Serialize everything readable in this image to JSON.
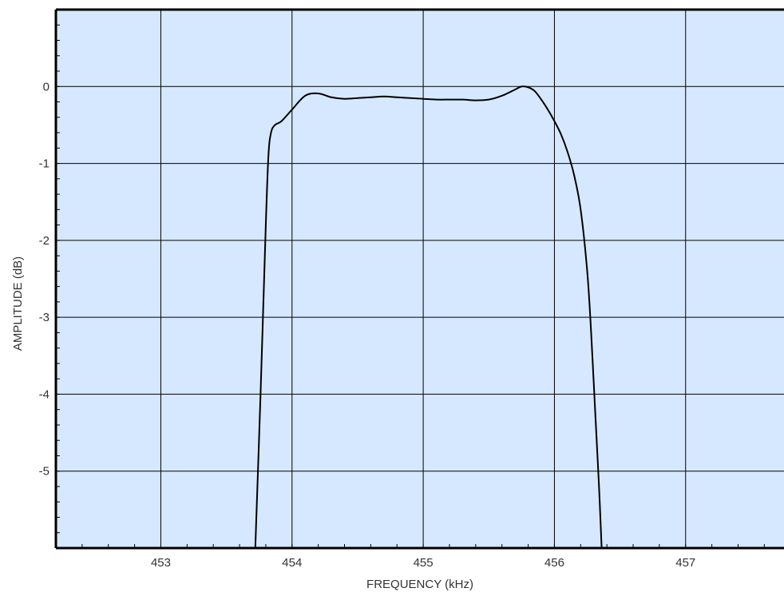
{
  "chart_data": {
    "type": "line",
    "title": "",
    "xlabel": "FREQUENCY (kHz)",
    "ylabel": "AMPLITUDE (dB)",
    "xlim": [
      452.2,
      457.75
    ],
    "ylim": [
      -6.0,
      1.0
    ],
    "x_ticks": [
      453,
      454,
      455,
      456,
      457
    ],
    "y_ticks": [
      0,
      -1,
      -2,
      -3,
      -4,
      -5
    ],
    "x_tick_labels": [
      "453",
      "454",
      "455",
      "456",
      "457"
    ],
    "y_tick_labels": [
      "0",
      "-1",
      "-2",
      "-3",
      "-4",
      "-5"
    ],
    "grid": true,
    "colors": {
      "plot_background": "#d6e8ff",
      "line": "#000000",
      "grid": "#000000"
    },
    "series": [
      {
        "x": [
          453.72,
          453.76,
          453.8,
          453.82,
          453.84,
          453.87,
          453.92,
          454.0,
          454.1,
          454.2,
          454.3,
          454.4,
          454.5,
          454.6,
          454.7,
          454.8,
          454.9,
          455.0,
          455.1,
          455.2,
          455.3,
          455.4,
          455.5,
          455.6,
          455.7,
          455.75,
          455.8,
          455.85,
          455.9,
          455.95,
          456.0,
          456.05,
          456.1,
          456.15,
          456.2,
          456.25,
          456.28,
          456.31,
          456.34,
          456.36
        ],
        "y": [
          -6.0,
          -4.0,
          -1.8,
          -0.9,
          -0.6,
          -0.5,
          -0.45,
          -0.3,
          -0.12,
          -0.09,
          -0.14,
          -0.16,
          -0.15,
          -0.14,
          -0.13,
          -0.14,
          -0.15,
          -0.16,
          -0.17,
          -0.17,
          -0.17,
          -0.18,
          -0.17,
          -0.12,
          -0.04,
          0.0,
          -0.01,
          -0.06,
          -0.17,
          -0.3,
          -0.45,
          -0.62,
          -0.85,
          -1.15,
          -1.6,
          -2.4,
          -3.2,
          -4.2,
          -5.2,
          -6.0
        ]
      }
    ]
  }
}
